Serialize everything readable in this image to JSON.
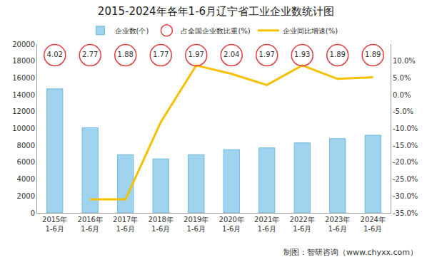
{
  "chart_data": {
    "type": "bar",
    "title": "2015-2024年各年1-6月辽宁省工业企业数统计图",
    "source": "制图：智研咨询（www.chyxx.com）",
    "categories": [
      "2015年\n1-6月",
      "2016年\n1-6月",
      "2017年\n1-6月",
      "2018年\n1-6月",
      "2019年\n1-6月",
      "2020年\n1-6月",
      "2021年\n1-6月",
      "2022年\n1-6月",
      "2023年\n1-6月",
      "2024年\n1-6月"
    ],
    "series": [
      {
        "name": "企业数(个)",
        "type": "bar",
        "color": "#9fd3ee",
        "values": [
          14700,
          10100,
          6900,
          6400,
          6900,
          7500,
          7700,
          8300,
          8800,
          9200
        ]
      },
      {
        "name": "占全国企业数比重(%)",
        "type": "scatter",
        "marker": "circle",
        "color": "#e03c3c",
        "data_labels": true,
        "values": [
          4.02,
          2.77,
          1.88,
          1.77,
          1.97,
          2.04,
          1.97,
          1.93,
          1.89,
          1.89
        ]
      },
      {
        "name": "企业同比增速(%)",
        "type": "line",
        "color": "#f5c000",
        "axis": "y2",
        "values": [
          null,
          -31,
          -31,
          -8.1,
          8.7,
          6.2,
          2.9,
          8.7,
          4.7,
          5.2
        ]
      }
    ],
    "ylim": [
      0,
      20000
    ],
    "yticks": [
      0,
      2000,
      4000,
      6000,
      8000,
      10000,
      12000,
      14000,
      16000,
      18000,
      20000
    ],
    "y2lim": [
      -35,
      15
    ],
    "y2ticks": [
      {
        "value": -35,
        "label": "-35.0%"
      },
      {
        "value": -30,
        "label": "-30.0%"
      },
      {
        "value": -25,
        "label": "-25.0%"
      },
      {
        "value": -20,
        "label": "-20.0%"
      },
      {
        "value": -15,
        "label": "-15.0%"
      },
      {
        "value": -10,
        "label": "-10.0%"
      },
      {
        "value": -5,
        "label": "-5.0%"
      },
      {
        "value": 0,
        "label": "0.0%"
      },
      {
        "value": 5,
        "label": "5.0%"
      },
      {
        "value": 10,
        "label": "10.0%"
      }
    ],
    "legend": "top",
    "grid": false
  }
}
